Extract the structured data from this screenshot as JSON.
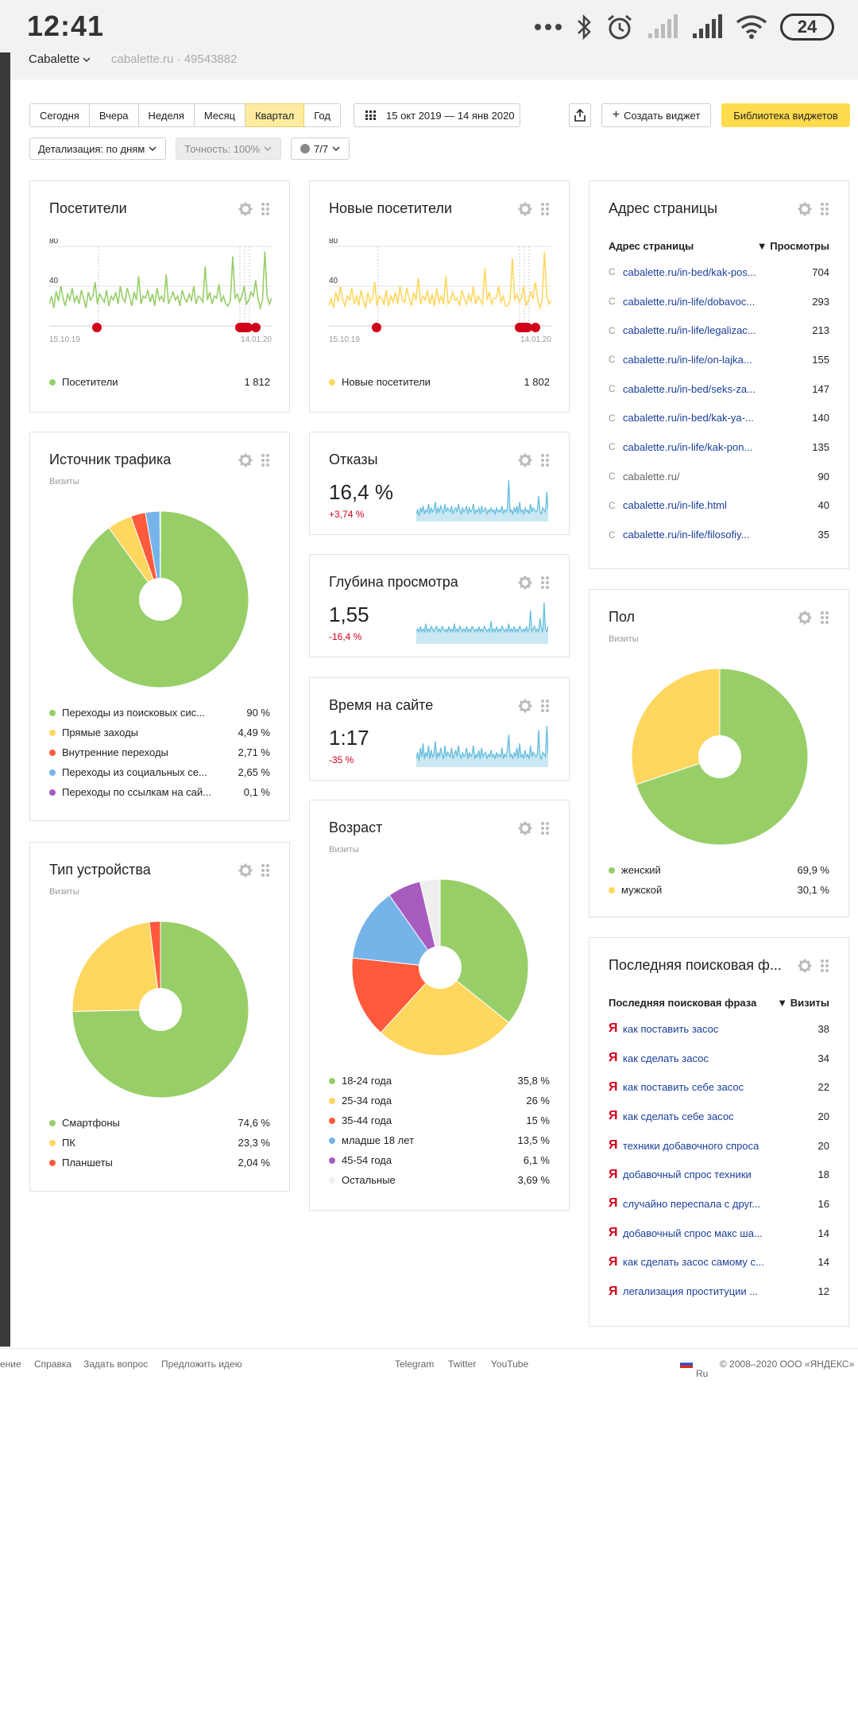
{
  "statusbar": {
    "time": "12:41",
    "battery": "24"
  },
  "appbar": {
    "counter": "Cabalette",
    "domain": "cabalette.ru · 49543882"
  },
  "toolbar": {
    "periods": [
      {
        "label": "Сегодня",
        "active": false
      },
      {
        "label": "Вчера",
        "active": false
      },
      {
        "label": "Неделя",
        "active": false
      },
      {
        "label": "Месяц",
        "active": false
      },
      {
        "label": "Квартал",
        "active": true
      },
      {
        "label": "Год",
        "active": false
      }
    ],
    "date_range": "15 окт 2019 — 14 янв 2020",
    "create_widget": "Создать виджет",
    "widget_library": "Библиотека виджетов",
    "detail": "Детализация: по дням",
    "accuracy": "Точность: 100%",
    "segments": "7/7"
  },
  "colors": {
    "green": "#97ce68",
    "yellow": "#ffd75e",
    "red": "#ff5a3c",
    "blue": "#75b4e8",
    "purple": "#a75bbf",
    "light": "#eeeeee",
    "sky": "#66bedd",
    "accent": "#ffdb4d"
  },
  "visitors": {
    "title": "Посетители",
    "axis_top": "80",
    "axis_mid": "40",
    "date_start": "15.10.19",
    "date_end": "14.01.20",
    "legend_label": "Посетители",
    "legend_value": "1 812",
    "series": [
      22,
      30,
      18,
      35,
      25,
      40,
      28,
      20,
      32,
      26,
      38,
      24,
      30,
      22,
      36,
      28,
      18,
      34,
      26,
      30,
      44,
      22,
      32,
      28,
      24,
      36,
      20,
      30,
      26,
      34,
      22,
      40,
      28,
      24,
      38,
      30,
      20,
      34,
      26,
      50,
      22,
      30,
      28,
      36,
      24,
      32,
      20,
      38,
      26,
      30,
      24,
      52,
      22,
      28,
      34,
      26,
      30,
      20,
      36,
      28,
      24,
      32,
      26,
      40,
      22,
      30,
      28,
      24,
      60,
      26,
      34,
      22,
      30,
      28,
      42,
      24,
      30,
      22,
      20,
      26,
      70,
      28,
      32,
      24,
      30,
      40,
      22,
      26,
      34,
      30,
      46,
      28,
      18,
      26,
      75,
      30,
      22,
      28
    ]
  },
  "new_visitors": {
    "title": "Новые посетители",
    "axis_top": "80",
    "axis_mid": "40",
    "date_start": "15.10.19",
    "date_end": "14.01.20",
    "legend_label": "Новые посетители",
    "legend_value": "1 802",
    "series": [
      20,
      28,
      18,
      34,
      24,
      40,
      26,
      20,
      30,
      26,
      38,
      22,
      30,
      20,
      36,
      26,
      18,
      34,
      24,
      28,
      44,
      20,
      30,
      28,
      22,
      36,
      20,
      30,
      24,
      34,
      22,
      40,
      26,
      24,
      38,
      28,
      20,
      34,
      26,
      48,
      22,
      30,
      26,
      36,
      22,
      32,
      20,
      38,
      24,
      30,
      22,
      50,
      22,
      26,
      34,
      26,
      28,
      20,
      36,
      28,
      22,
      32,
      24,
      40,
      22,
      30,
      26,
      22,
      58,
      26,
      34,
      22,
      28,
      28,
      40,
      24,
      30,
      20,
      20,
      26,
      68,
      26,
      32,
      24,
      28,
      40,
      20,
      26,
      34,
      28,
      44,
      28,
      18,
      26,
      74,
      30,
      22,
      26
    ]
  },
  "traffic": {
    "title": "Источник трафика",
    "subtitle": "Визиты",
    "items": [
      {
        "label": "Переходы из поисковых сис...",
        "value": "90 %",
        "share": 90,
        "color": "#97ce68"
      },
      {
        "label": "Прямые заходы",
        "value": "4,49 %",
        "share": 4.49,
        "color": "#ffd75e"
      },
      {
        "label": "Внутренние переходы",
        "value": "2,71 %",
        "share": 2.71,
        "color": "#ff5a3c"
      },
      {
        "label": "Переходы из социальных се...",
        "value": "2,65 %",
        "share": 2.65,
        "color": "#75b4e8"
      },
      {
        "label": "Переходы по ссылкам на сай...",
        "value": "0,1 %",
        "share": 0.1,
        "color": "#a75bbf"
      }
    ]
  },
  "bounce": {
    "title": "Отказы",
    "value": "16,4 %",
    "delta": "+3,74 %",
    "series": [
      3,
      5,
      2,
      6,
      4,
      7,
      3,
      5,
      4,
      8,
      3,
      6,
      4,
      5,
      9,
      3,
      6,
      4,
      7,
      5,
      3,
      8,
      4,
      6,
      5,
      4,
      7,
      3,
      5,
      6,
      4,
      8,
      5,
      3,
      6,
      4,
      5,
      7,
      3,
      6,
      4,
      5,
      8,
      3,
      5,
      4,
      6,
      3,
      7,
      4,
      5,
      6,
      3,
      5,
      4,
      6,
      4,
      5,
      3,
      6,
      4,
      5,
      4,
      7,
      3,
      5,
      4,
      6,
      20,
      4,
      5,
      3,
      6,
      4,
      7,
      3,
      9,
      4,
      5,
      3,
      6,
      4,
      5,
      3,
      8,
      4,
      6,
      5,
      4,
      5,
      12,
      4,
      3,
      6,
      5,
      4,
      14,
      5
    ]
  },
  "depth": {
    "title": "Глубина просмотра",
    "value": "1,55",
    "delta": "-16,4 %",
    "series": [
      4,
      5,
      4,
      6,
      4,
      5,
      4,
      7,
      4,
      5,
      4,
      6,
      5,
      4,
      5,
      6,
      4,
      5,
      4,
      6,
      5,
      4,
      5,
      4,
      6,
      4,
      5,
      4,
      7,
      4,
      5,
      4,
      6,
      5,
      4,
      5,
      4,
      6,
      4,
      5,
      4,
      6,
      5,
      4,
      5,
      4,
      6,
      4,
      5,
      4,
      6,
      5,
      4,
      5,
      4,
      8,
      4,
      5,
      4,
      6,
      4,
      5,
      4,
      6,
      5,
      4,
      5,
      4,
      7,
      4,
      5,
      4,
      6,
      4,
      5,
      4,
      6,
      5,
      4,
      5,
      4,
      6,
      4,
      5,
      12,
      4,
      5,
      6,
      4,
      5,
      4,
      9,
      5,
      4,
      15,
      5,
      4,
      6
    ]
  },
  "time_on_site": {
    "title": "Время на сайте",
    "value": "1:17",
    "delta": "-35 %",
    "series": [
      3,
      6,
      2,
      8,
      4,
      10,
      3,
      6,
      4,
      9,
      3,
      7,
      4,
      5,
      11,
      3,
      6,
      4,
      8,
      5,
      3,
      9,
      4,
      6,
      5,
      4,
      8,
      3,
      5,
      7,
      4,
      9,
      5,
      3,
      6,
      4,
      5,
      8,
      3,
      6,
      4,
      5,
      9,
      3,
      5,
      4,
      7,
      3,
      8,
      4,
      5,
      6,
      3,
      5,
      4,
      7,
      4,
      5,
      3,
      6,
      4,
      5,
      4,
      8,
      3,
      5,
      4,
      7,
      14,
      4,
      5,
      3,
      6,
      4,
      8,
      3,
      10,
      4,
      5,
      3,
      7,
      4,
      5,
      3,
      9,
      4,
      6,
      5,
      4,
      5,
      16,
      4,
      3,
      6,
      5,
      4,
      18,
      5
    ]
  },
  "pages": {
    "title": "Адрес страницы",
    "col_name": "Адрес страницы",
    "col_value": "▼ Просмотры",
    "rows": [
      {
        "url": "cabalette.ru/in-bed/kak-pos...",
        "value": "704",
        "link": true
      },
      {
        "url": "cabalette.ru/in-life/dobavoc...",
        "value": "293",
        "link": true
      },
      {
        "url": "cabalette.ru/in-life/legalizac...",
        "value": "213",
        "link": true
      },
      {
        "url": "cabalette.ru/in-life/on-lajka...",
        "value": "155",
        "link": true
      },
      {
        "url": "cabalette.ru/in-bed/seks-za...",
        "value": "147",
        "link": true
      },
      {
        "url": "cabalette.ru/in-bed/kak-ya-...",
        "value": "140",
        "link": true
      },
      {
        "url": "cabalette.ru/in-life/kak-pon...",
        "value": "135",
        "link": true
      },
      {
        "url": "cabalette.ru/",
        "value": "90",
        "link": false
      },
      {
        "url": "cabalette.ru/in-life.html",
        "value": "40",
        "link": true
      },
      {
        "url": "cabalette.ru/in-life/filosofiy...",
        "value": "35",
        "link": true
      }
    ]
  },
  "gender": {
    "title": "Пол",
    "subtitle": "Визиты",
    "items": [
      {
        "label": "женский",
        "value": "69,9 %",
        "share": 69.9,
        "color": "#97ce68"
      },
      {
        "label": "мужской",
        "value": "30,1 %",
        "share": 30.1,
        "color": "#ffd75e"
      }
    ]
  },
  "device": {
    "title": "Тип устройства",
    "subtitle": "Визиты",
    "items": [
      {
        "label": "Смартфоны",
        "value": "74,6 %",
        "share": 74.6,
        "color": "#97ce68"
      },
      {
        "label": "ПК",
        "value": "23,3 %",
        "share": 23.3,
        "color": "#ffd75e"
      },
      {
        "label": "Планшеты",
        "value": "2,04 %",
        "share": 2.04,
        "color": "#ff5a3c"
      }
    ]
  },
  "age": {
    "title": "Возраст",
    "subtitle": "Визиты",
    "items": [
      {
        "label": "18-24 года",
        "value": "35,8 %",
        "share": 35.8,
        "color": "#97ce68"
      },
      {
        "label": "25-34 года",
        "value": "26 %",
        "share": 26,
        "color": "#ffd75e"
      },
      {
        "label": "35-44 года",
        "value": "15 %",
        "share": 15,
        "color": "#ff5a3c"
      },
      {
        "label": "младше 18 лет",
        "value": "13,5 %",
        "share": 13.5,
        "color": "#75b4e8"
      },
      {
        "label": "45-54 года",
        "value": "6,1 %",
        "share": 6.1,
        "color": "#a75bbf"
      },
      {
        "label": "Остальные",
        "value": "3,69 %",
        "share": 3.69,
        "color": "#eeeeee"
      }
    ]
  },
  "search_phrases": {
    "title": "Последняя поисковая ф...",
    "col_name": "Последняя поисковая фраза",
    "col_value": "▼ Визиты",
    "rows": [
      {
        "phrase": "как поставить засос",
        "value": "38"
      },
      {
        "phrase": "как сделать засос",
        "value": "34"
      },
      {
        "phrase": "как поставить себе засос",
        "value": "22"
      },
      {
        "phrase": "как сделать себе засос",
        "value": "20"
      },
      {
        "phrase": "техники добавочного спроса",
        "value": "20"
      },
      {
        "phrase": "добавочный спрос техники",
        "value": "18"
      },
      {
        "phrase": "случайно переспала с друг...",
        "value": "16"
      },
      {
        "phrase": "добавочный спрос макс ша...",
        "value": "14"
      },
      {
        "phrase": "как сделать засос самому с...",
        "value": "14"
      },
      {
        "phrase": "легализация проституции ...",
        "value": "12"
      }
    ]
  },
  "footer": {
    "left": [
      "ение",
      "Справка",
      "Задать вопрос",
      "Предложить идею"
    ],
    "social": [
      "Telegram",
      "Twitter",
      "YouTube"
    ],
    "lang": "Ru",
    "copyright": "© 2008–2020 ООО «ЯНДЕКС»"
  },
  "chart_data": [
    {
      "type": "line",
      "title": "Посетители",
      "ylim": [
        0,
        80
      ],
      "x": [
        "15.10.19",
        "14.01.20"
      ],
      "series": [
        {
          "name": "Посетители"
        }
      ]
    },
    {
      "type": "line",
      "title": "Новые посетители",
      "ylim": [
        0,
        80
      ],
      "x": [
        "15.10.19",
        "14.01.20"
      ],
      "series": [
        {
          "name": "Новые посетители"
        }
      ]
    },
    {
      "type": "pie",
      "title": "Источник трафика",
      "categories": [
        "Переходы из поисковых сис...",
        "Прямые заходы",
        "Внутренние переходы",
        "Переходы из социальных се...",
        "Переходы по ссылкам на сай..."
      ],
      "values": [
        90,
        4.49,
        2.71,
        2.65,
        0.1
      ]
    },
    {
      "type": "pie",
      "title": "Пол",
      "categories": [
        "женский",
        "мужской"
      ],
      "values": [
        69.9,
        30.1
      ]
    },
    {
      "type": "pie",
      "title": "Тип устройства",
      "categories": [
        "Смартфоны",
        "ПК",
        "Планшеты"
      ],
      "values": [
        74.6,
        23.3,
        2.04
      ]
    },
    {
      "type": "pie",
      "title": "Возраст",
      "categories": [
        "18-24 года",
        "25-34 года",
        "35-44 года",
        "младше 18 лет",
        "45-54 года",
        "Остальные"
      ],
      "values": [
        35.8,
        26,
        15,
        13.5,
        6.1,
        3.69
      ]
    }
  ]
}
